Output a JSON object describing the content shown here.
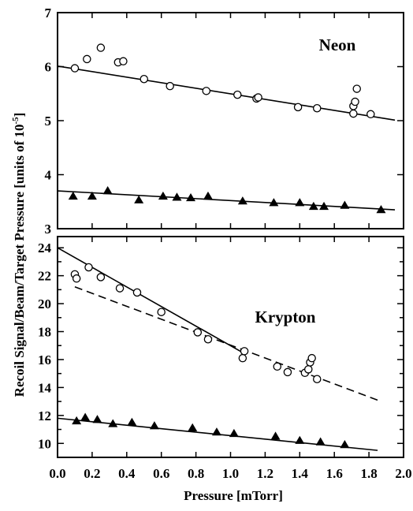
{
  "figure": {
    "ylabel": "Recoil Signal/Beam/Target Pressure  [units of 10",
    "ylabel_exp": "-5",
    "ylabel_close": "]",
    "xlabel": "Pressure [mTorr]"
  },
  "chart_data": [
    {
      "type": "scatter",
      "panel_label": "Neon",
      "xlim": [
        0.0,
        2.0
      ],
      "ylim": [
        3,
        7
      ],
      "xticks": [
        0.0,
        0.2,
        0.4,
        0.6,
        0.8,
        1.0,
        1.2,
        1.4,
        1.6,
        1.8,
        2.0
      ],
      "yticks": [
        3,
        4,
        5,
        6,
        7
      ],
      "yticks_labeled": [
        3,
        4,
        5,
        6,
        7
      ],
      "series": [
        {
          "marker": "open-circle",
          "points": [
            [
              0.1,
              5.97
            ],
            [
              0.17,
              6.14
            ],
            [
              0.25,
              6.35
            ],
            [
              0.35,
              6.08
            ],
            [
              0.38,
              6.1
            ],
            [
              0.5,
              5.77
            ],
            [
              0.65,
              5.64
            ],
            [
              0.86,
              5.55
            ],
            [
              1.04,
              5.48
            ],
            [
              1.15,
              5.41
            ],
            [
              1.16,
              5.43
            ],
            [
              1.39,
              5.25
            ],
            [
              1.5,
              5.23
            ],
            [
              1.71,
              5.13
            ],
            [
              1.71,
              5.27
            ],
            [
              1.72,
              5.35
            ],
            [
              1.73,
              5.59
            ],
            [
              1.81,
              5.12
            ]
          ],
          "fit": {
            "style": "solid",
            "x": [
              0.0,
              1.95
            ],
            "y": [
              6.01,
              5.01
            ]
          }
        },
        {
          "marker": "filled-triangle",
          "points": [
            [
              0.09,
              3.6
            ],
            [
              0.2,
              3.6
            ],
            [
              0.29,
              3.7
            ],
            [
              0.47,
              3.53
            ],
            [
              0.61,
              3.6
            ],
            [
              0.69,
              3.58
            ],
            [
              0.77,
              3.57
            ],
            [
              0.87,
              3.6
            ],
            [
              1.07,
              3.51
            ],
            [
              1.25,
              3.48
            ],
            [
              1.4,
              3.48
            ],
            [
              1.48,
              3.41
            ],
            [
              1.54,
              3.41
            ],
            [
              1.66,
              3.43
            ],
            [
              1.87,
              3.35
            ]
          ],
          "fit": {
            "style": "solid",
            "x": [
              0.0,
              1.95
            ],
            "y": [
              3.7,
              3.35
            ]
          }
        }
      ]
    },
    {
      "type": "scatter",
      "panel_label": "Krypton",
      "xlim": [
        0.0,
        2.0
      ],
      "ylim": [
        9,
        24.8
      ],
      "xticks": [
        0.0,
        0.2,
        0.4,
        0.6,
        0.8,
        1.0,
        1.2,
        1.4,
        1.6,
        1.8,
        2.0
      ],
      "xtick_labels": [
        "0.0",
        "0.2",
        "0.4",
        "0.6",
        "0.8",
        "1.0",
        "1.2",
        "1.4",
        "1.6",
        "1.8",
        "2.0"
      ],
      "yticks": [
        9,
        10,
        11,
        12,
        13,
        14,
        15,
        16,
        17,
        18,
        19,
        20,
        21,
        22,
        23,
        24
      ],
      "yticks_labeled": [
        10,
        12,
        14,
        16,
        18,
        20,
        22,
        24
      ],
      "series": [
        {
          "marker": "open-circle",
          "points": [
            [
              0.1,
              22.1
            ],
            [
              0.11,
              21.8
            ],
            [
              0.18,
              22.6
            ],
            [
              0.25,
              21.9
            ],
            [
              0.36,
              21.1
            ],
            [
              0.46,
              20.8
            ],
            [
              0.6,
              19.4
            ],
            [
              0.81,
              17.95
            ],
            [
              0.87,
              17.45
            ],
            [
              1.07,
              16.1
            ],
            [
              1.08,
              16.6
            ],
            [
              1.27,
              15.5
            ],
            [
              1.33,
              15.1
            ],
            [
              1.43,
              15.05
            ],
            [
              1.45,
              15.3
            ],
            [
              1.46,
              15.8
            ],
            [
              1.47,
              16.1
            ],
            [
              1.5,
              14.6
            ]
          ],
          "fit": {
            "style": "solid",
            "x": [
              0.0,
              1.07
            ],
            "y": [
              24.0,
              16.5
            ]
          },
          "fit2": {
            "style": "dashed",
            "x": [
              0.1,
              1.85
            ],
            "y": [
              21.2,
              13.1
            ]
          }
        },
        {
          "marker": "filled-triangle",
          "points": [
            [
              0.11,
              11.6
            ],
            [
              0.16,
              11.85
            ],
            [
              0.23,
              11.7
            ],
            [
              0.32,
              11.4
            ],
            [
              0.43,
              11.5
            ],
            [
              0.56,
              11.25
            ],
            [
              0.78,
              11.1
            ],
            [
              0.92,
              10.8
            ],
            [
              1.02,
              10.7
            ],
            [
              1.26,
              10.5
            ],
            [
              1.4,
              10.2
            ],
            [
              1.52,
              10.1
            ],
            [
              1.66,
              9.9
            ]
          ],
          "fit": {
            "style": "solid",
            "x": [
              0.0,
              1.85
            ],
            "y": [
              11.8,
              9.5
            ]
          }
        }
      ]
    }
  ]
}
